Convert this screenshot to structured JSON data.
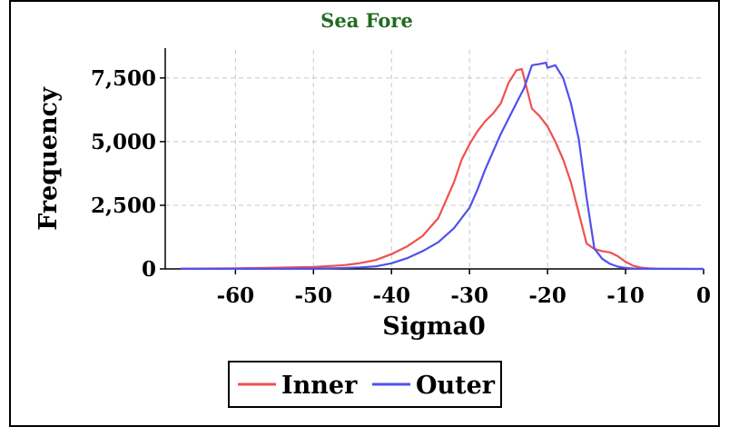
{
  "chart_data": {
    "type": "line",
    "title": "Sea Fore",
    "xlabel": "Sigma0",
    "ylabel": "Frequency",
    "xlim": [
      -69,
      0
    ],
    "ylim": [
      0,
      8600
    ],
    "xticks": [
      -60,
      -50,
      -40,
      -30,
      -20,
      -10,
      0
    ],
    "xtick_labels": [
      "-60",
      "-50",
      "-40",
      "-30",
      "-20",
      "-10",
      "0"
    ],
    "yticks": [
      0,
      2500,
      5000,
      7500
    ],
    "ytick_labels": [
      "0",
      "2,500",
      "5,000",
      "7,500"
    ],
    "grid": true,
    "legend_position": "bottom",
    "series": [
      {
        "name": "Inner",
        "color": "#f05050",
        "x": [
          -67,
          -64,
          -60,
          -56,
          -53,
          -50,
          -48,
          -46,
          -44,
          -42,
          -40,
          -38,
          -36,
          -34,
          -33,
          -32,
          -31,
          -30,
          -29,
          -28,
          -27,
          -26,
          -25,
          -24,
          -23.3,
          -23,
          -22,
          -21,
          -20,
          -19,
          -18,
          -17,
          -16,
          -15,
          -14,
          -13,
          -12,
          -11,
          -10,
          -9,
          -8,
          -7,
          -6,
          -5,
          -3,
          0
        ],
        "y": [
          10,
          15,
          25,
          40,
          60,
          80,
          110,
          150,
          230,
          350,
          580,
          880,
          1300,
          2000,
          2700,
          3400,
          4300,
          4900,
          5400,
          5800,
          6100,
          6500,
          7300,
          7800,
          7850,
          7500,
          6300,
          6000,
          5600,
          5000,
          4300,
          3400,
          2200,
          1000,
          780,
          700,
          650,
          500,
          280,
          120,
          50,
          20,
          10,
          5,
          2,
          0
        ]
      },
      {
        "name": "Outer",
        "color": "#5050f0",
        "x": [
          -67,
          -60,
          -55,
          -50,
          -47,
          -44,
          -42,
          -40,
          -38,
          -36,
          -34,
          -32,
          -30,
          -29,
          -28,
          -27,
          -26,
          -25,
          -24,
          -23,
          -22,
          -21,
          -20.2,
          -20,
          -19,
          -18,
          -17,
          -16,
          -15,
          -14,
          -13,
          -12,
          -11,
          -10,
          -9,
          -8,
          -6,
          0
        ],
        "y": [
          5,
          5,
          8,
          15,
          30,
          60,
          100,
          220,
          420,
          700,
          1050,
          1600,
          2400,
          3100,
          3900,
          4600,
          5300,
          5900,
          6500,
          7100,
          8000,
          8050,
          8100,
          7900,
          8000,
          7500,
          6500,
          5100,
          2800,
          800,
          400,
          200,
          90,
          40,
          15,
          8,
          3,
          0
        ]
      }
    ]
  }
}
